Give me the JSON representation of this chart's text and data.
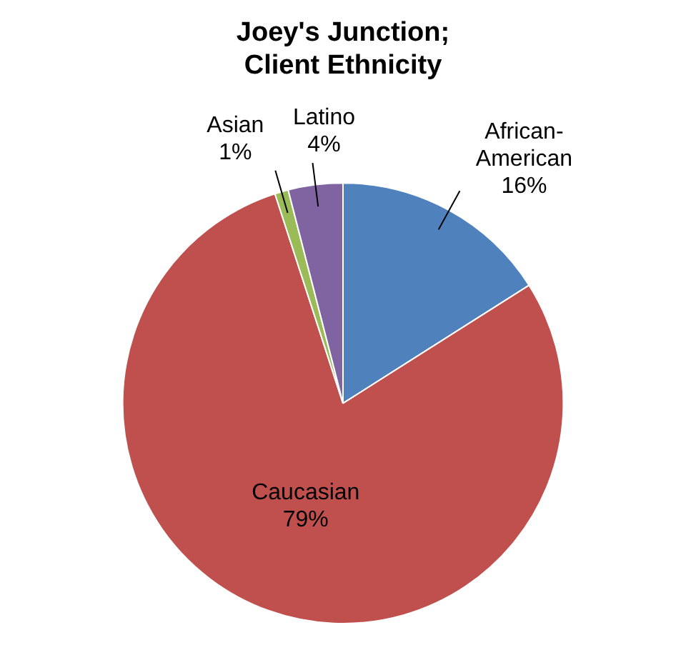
{
  "chart_data": {
    "type": "pie",
    "title": "Joey's Junction; Client Ethnicity",
    "categories": [
      "African-American",
      "Caucasian",
      "Asian",
      "Latino"
    ],
    "values": [
      16,
      79,
      1,
      4
    ],
    "colors": [
      "#4f81bd",
      "#c0504d",
      "#9bbb59",
      "#8064a2"
    ],
    "value_labels": [
      "16%",
      "79%",
      "1%",
      "4%"
    ],
    "legend": false
  }
}
